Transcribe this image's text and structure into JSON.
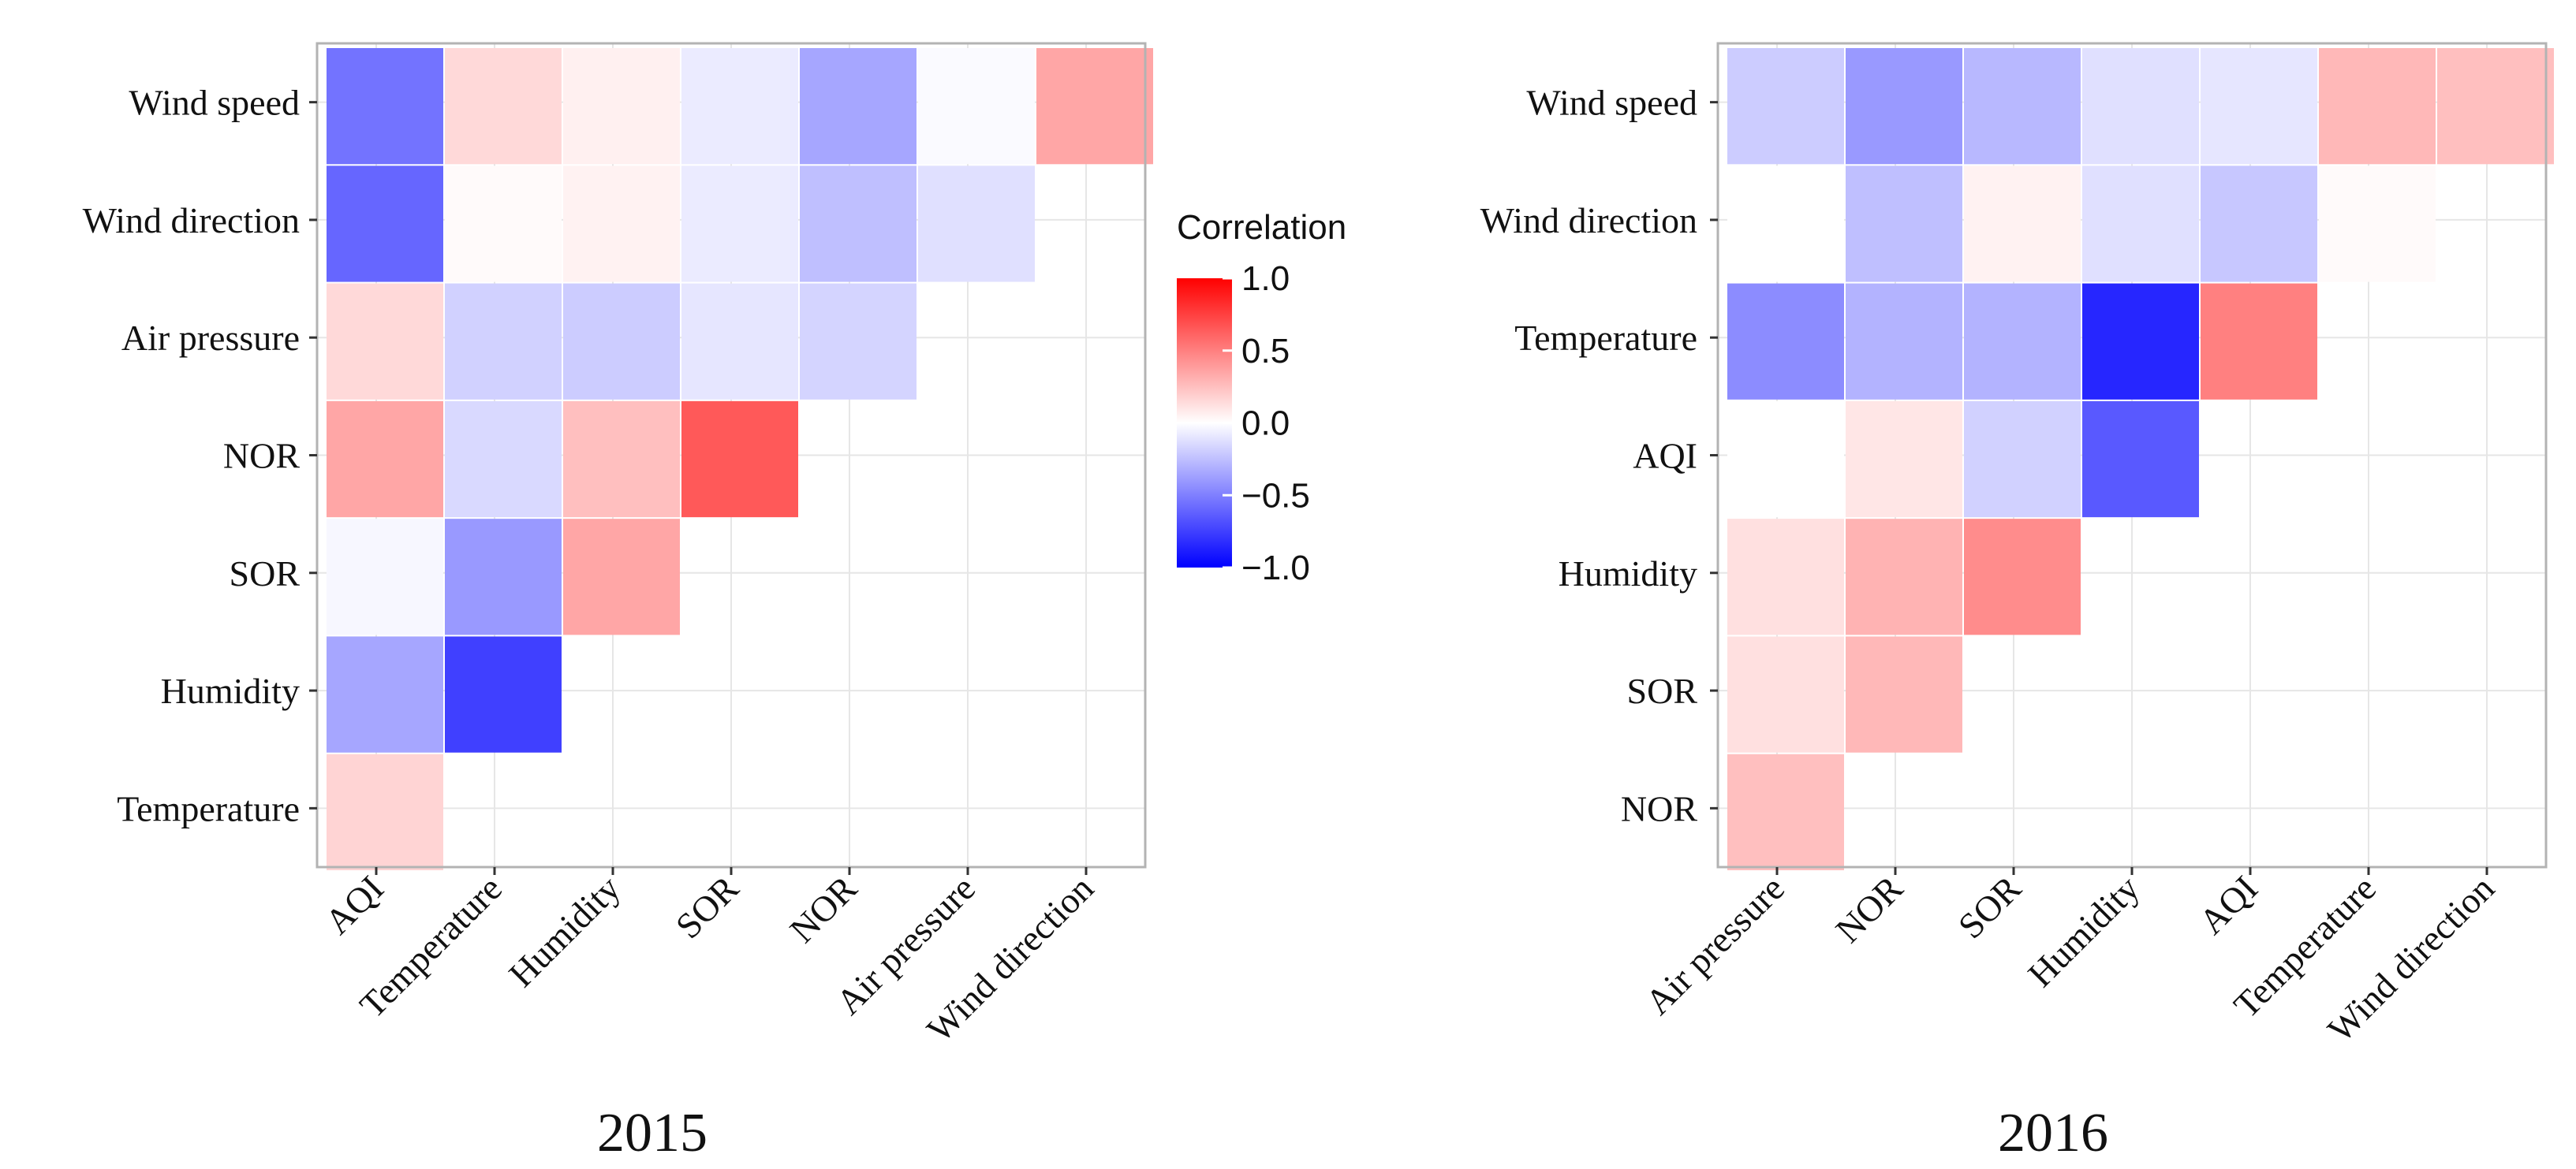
{
  "chart_data": [
    {
      "type": "heatmap",
      "title": "2015",
      "x_categories": [
        "AQI",
        "Temperature",
        "Humidity",
        "SOR",
        "NOR",
        "Air pressure",
        "Wind direction"
      ],
      "y_categories_top_to_bottom": [
        "Wind speed",
        "Wind direction",
        "Air pressure",
        "NOR",
        "SOR",
        "Humidity",
        "Temperature"
      ],
      "values": [
        [
          -0.55,
          0.15,
          0.06,
          -0.08,
          -0.35,
          -0.02,
          0.35
        ],
        [
          -0.6,
          0.02,
          0.05,
          -0.08,
          -0.25,
          -0.12,
          null
        ],
        [
          0.15,
          -0.18,
          -0.2,
          -0.1,
          -0.17,
          null,
          null
        ],
        [
          0.35,
          -0.15,
          0.25,
          0.65,
          null,
          null,
          null
        ],
        [
          -0.03,
          -0.4,
          0.35,
          null,
          null,
          null,
          null
        ],
        [
          -0.35,
          -0.75,
          null,
          null,
          null,
          null,
          null
        ],
        [
          0.17,
          null,
          null,
          null,
          null,
          null,
          null
        ]
      ],
      "color_scale": {
        "low": "#0000ff",
        "mid": "#ffffff",
        "high": "#ff0000",
        "range": [
          -1.0,
          1.0
        ]
      }
    },
    {
      "type": "heatmap",
      "title": "2016",
      "x_categories": [
        "Air pressure",
        "NOR",
        "SOR",
        "Humidity",
        "AQI",
        "Temperature",
        "Wind direction"
      ],
      "y_categories_top_to_bottom": [
        "Wind speed",
        "Wind direction",
        "Temperature",
        "AQI",
        "Humidity",
        "SOR",
        "NOR"
      ],
      "values": [
        [
          -0.2,
          -0.4,
          -0.28,
          -0.12,
          -0.1,
          0.28,
          0.25
        ],
        [
          0.0,
          -0.25,
          0.05,
          -0.12,
          -0.22,
          0.02,
          null
        ],
        [
          -0.45,
          -0.3,
          -0.3,
          -0.85,
          0.5,
          null,
          null
        ],
        [
          0.0,
          0.1,
          -0.18,
          -0.65,
          null,
          null,
          null
        ],
        [
          0.12,
          0.3,
          0.45,
          null,
          null,
          null,
          null
        ],
        [
          0.12,
          0.28,
          null,
          null,
          null,
          null,
          null
        ],
        [
          0.25,
          null,
          null,
          null,
          null,
          null,
          null
        ]
      ],
      "color_scale": {
        "low": "#0000ff",
        "mid": "#ffffff",
        "high": "#ff0000",
        "range": [
          -1.0,
          1.0
        ]
      }
    }
  ],
  "legend": {
    "title": "Correlation",
    "ticks": [
      {
        "value": 1.0,
        "label": "1.0"
      },
      {
        "value": 0.5,
        "label": "0.5"
      },
      {
        "value": 0.0,
        "label": "0.0"
      },
      {
        "value": -0.5,
        "label": "−0.5"
      },
      {
        "value": -1.0,
        "label": "−1.0"
      }
    ]
  }
}
